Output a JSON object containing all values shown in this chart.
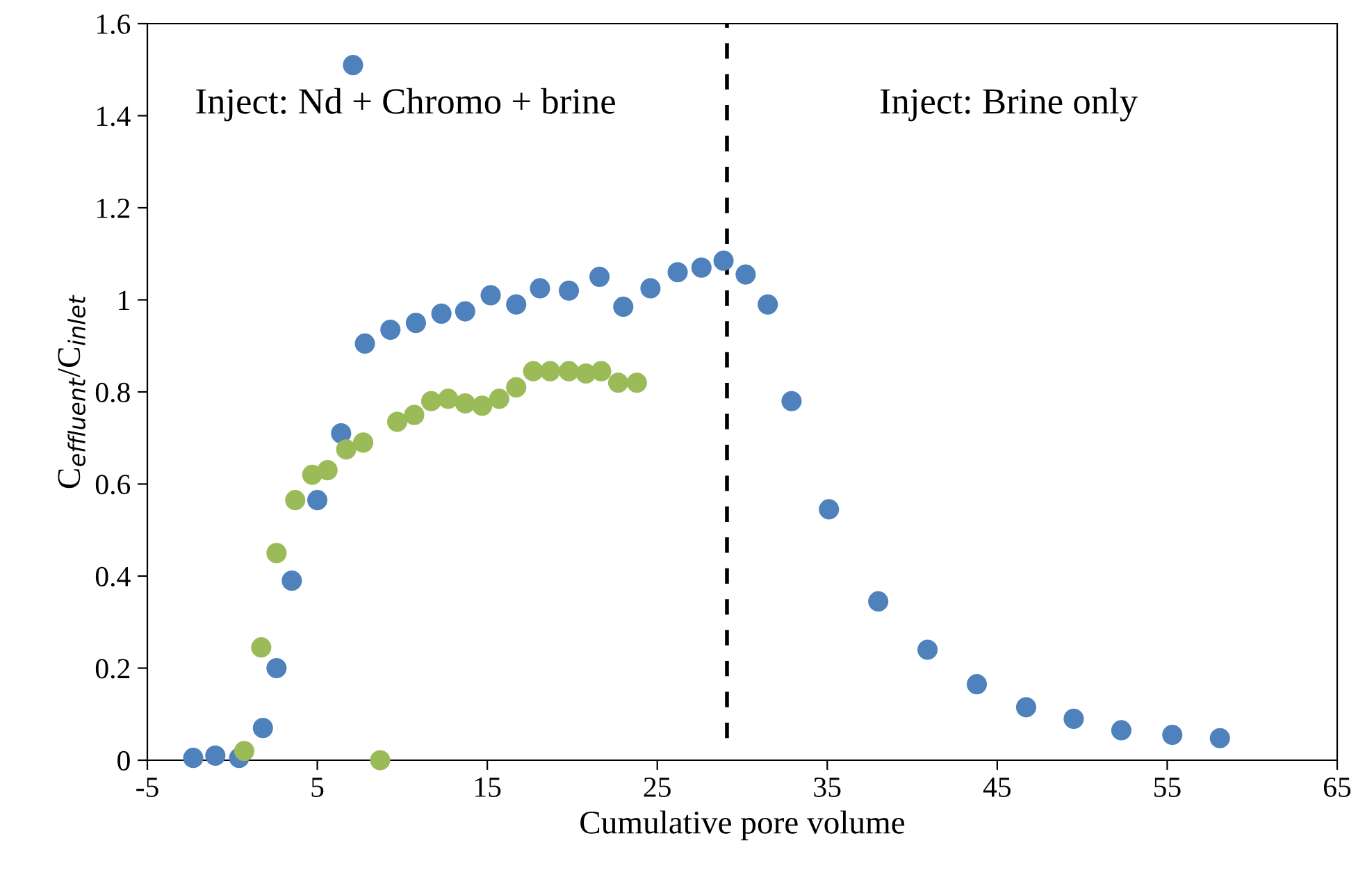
{
  "chart_data": {
    "type": "scatter",
    "xlabel": "Cumulative pore volume",
    "ylabel": "C$_{effluent}$/C$_{inlet}$",
    "annotations": [
      "Inject: Nd + Chromo + brine",
      "Inject: Brine only"
    ],
    "xlim": [
      -5,
      65
    ],
    "xticks": [
      -5,
      5,
      15,
      25,
      35,
      45,
      55,
      65
    ],
    "ylim": [
      0,
      1.6
    ],
    "yticks": [
      0,
      0.2,
      0.4,
      0.6,
      0.8,
      1,
      1.2,
      1.4,
      1.6
    ],
    "marker": "circle",
    "grid": false,
    "legend": false,
    "ref_lines": [
      {
        "axis": "x",
        "value": 29.1,
        "color": "#000000",
        "line_style": "dashed"
      }
    ],
    "series": [
      {
        "color": "#4f81bd",
        "x": [
          -2.3,
          -1.0,
          0.4,
          1.8,
          2.6,
          3.5,
          5.0,
          6.4,
          7.1,
          7.8,
          9.3,
          10.8,
          12.3,
          13.7,
          15.2,
          16.7,
          18.1,
          19.8,
          21.6,
          23.0,
          24.6,
          26.2,
          27.6,
          28.9,
          30.2,
          31.5,
          32.9,
          35.1,
          38.0,
          40.9,
          43.8,
          46.7,
          49.5,
          52.3,
          55.3,
          58.1
        ],
        "values": [
          0.005,
          0.01,
          0.005,
          0.07,
          0.2,
          0.39,
          0.565,
          0.71,
          1.51,
          0.905,
          0.935,
          0.95,
          0.97,
          0.975,
          1.01,
          0.99,
          1.025,
          1.02,
          1.05,
          0.985,
          1.025,
          1.06,
          1.07,
          1.085,
          1.055,
          0.99,
          0.78,
          0.545,
          0.345,
          0.24,
          0.165,
          0.115,
          0.09,
          0.065,
          0.055,
          0.048
        ]
      },
      {
        "color": "#9bbb59",
        "x": [
          0.7,
          1.7,
          2.6,
          3.7,
          4.7,
          5.6,
          6.7,
          7.7,
          8.7,
          9.7,
          10.7,
          11.7,
          12.7,
          13.7,
          14.7,
          15.7,
          16.7,
          17.7,
          18.7,
          19.8,
          20.8,
          21.7,
          22.7,
          23.8
        ],
        "values": [
          0.02,
          0.245,
          0.45,
          0.565,
          0.62,
          0.63,
          0.675,
          0.69,
          0.0,
          0.735,
          0.75,
          0.78,
          0.785,
          0.775,
          0.77,
          0.785,
          0.81,
          0.845,
          0.845,
          0.845,
          0.84,
          0.845,
          0.82,
          0.82
        ]
      }
    ]
  }
}
